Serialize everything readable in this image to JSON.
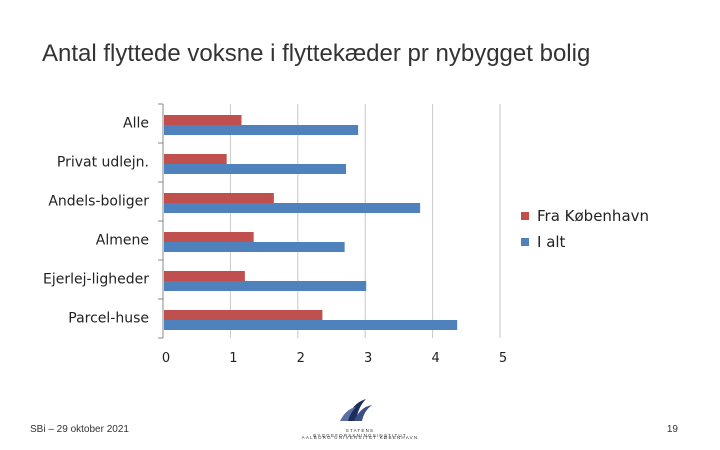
{
  "slide": {
    "title": "Antal flyttede voksne i flyttekæder pr nybygget bolig",
    "footer_left": "SBi – 29 oktober 2021",
    "page_number": "19",
    "logo_line1": "STATENS BYGGEFORSKNINGSINSTITUT",
    "logo_line2": "AALBORG UNIVERSITET KØBENHAVN"
  },
  "chart_data": {
    "type": "bar",
    "orientation": "horizontal",
    "categories": [
      "Alle",
      "Privat udlejn.",
      "Andels-boliger",
      "Almene",
      "Ejerlej-ligheder",
      "Parcel-huse"
    ],
    "series": [
      {
        "name": "Fra København",
        "color": "#c0504d",
        "values": [
          1.15,
          0.93,
          1.63,
          1.33,
          1.2,
          2.35
        ]
      },
      {
        "name": "I alt",
        "color": "#4f81bd",
        "values": [
          2.88,
          2.7,
          3.8,
          2.68,
          3.0,
          4.35
        ]
      }
    ],
    "xticks": [
      "0",
      "1",
      "2",
      "3",
      "4",
      "5"
    ],
    "xlim": [
      0,
      5
    ],
    "grid": true,
    "legend": "right"
  }
}
